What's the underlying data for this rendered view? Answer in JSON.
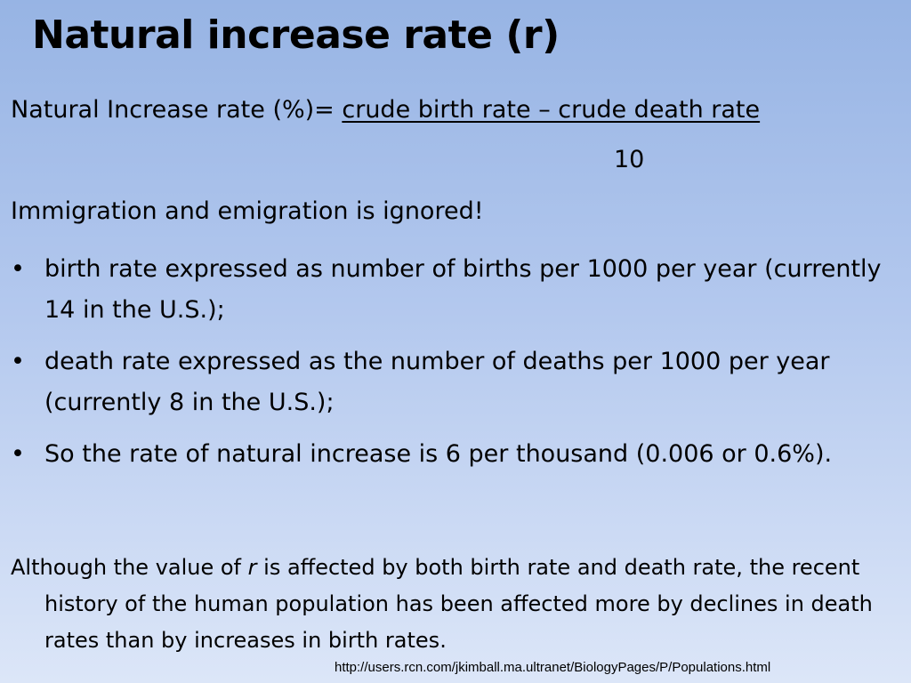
{
  "slide": {
    "title": "Natural increase rate (r)",
    "formula": {
      "lhs": "Natural Increase rate (%)= ",
      "numerator": "crude birth rate – crude death rate",
      "denominator": "10"
    },
    "note": "Immigration and emigration is ignored!",
    "bullet_symbol": "•",
    "bullets": [
      "birth rate expressed as number of births per 1000 per year (currently 14 in the U.S.);",
      "death rate expressed as the number of deaths per 1000 per year (currently 8 in the U.S.);",
      "So the rate of natural increase is 6 per thousand (0.006 or 0.6%)."
    ],
    "paragraph": {
      "before": "Although the value of ",
      "italic": "r",
      "after": " is affected by both birth rate and death rate, the recent history of the human population has been affected more by declines in death rates than by increases in birth rates."
    },
    "source_url": "http://users.rcn.com/jkimball.ma.ultranet/BiologyPages/P/Populations.html"
  }
}
